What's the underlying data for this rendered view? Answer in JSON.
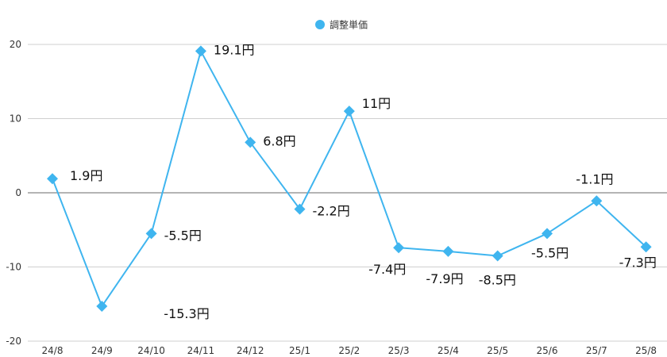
{
  "chart_data": {
    "type": "line",
    "title": "",
    "xlabel": "",
    "ylabel": "",
    "legend": {
      "position": "top-center"
    },
    "categories": [
      "24/8",
      "24/9",
      "24/10",
      "24/11",
      "24/12",
      "25/1",
      "25/2",
      "25/3",
      "25/4",
      "25/5",
      "25/6",
      "25/7",
      "25/8"
    ],
    "series": [
      {
        "name": "調整単価",
        "color": "#3fb5ef",
        "marker": "diamond",
        "values": [
          1.9,
          -15.3,
          -5.5,
          19.1,
          6.8,
          -2.2,
          11,
          -7.4,
          -7.9,
          -8.5,
          -5.5,
          -1.1,
          -7.3
        ],
        "labels": [
          "1.9円",
          "-15.3円",
          "-5.5円",
          "19.1円",
          "6.8円",
          "-2.2円",
          "11円",
          "-7.4円",
          "-7.9円",
          "-8.5円",
          "-5.5円",
          "-1.1円",
          "-7.3円"
        ]
      }
    ],
    "ylim": [
      -20,
      20
    ],
    "yticks": [
      20,
      10,
      0,
      -10,
      -20
    ],
    "grid": true
  }
}
